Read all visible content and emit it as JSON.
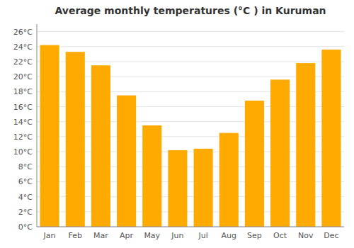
{
  "chart_data": {
    "type": "bar",
    "title": "Average monthly temperatures (°C ) in Kuruman",
    "categories": [
      "Jan",
      "Feb",
      "Mar",
      "Apr",
      "May",
      "Jun",
      "Jul",
      "Aug",
      "Sep",
      "Oct",
      "Nov",
      "Dec"
    ],
    "values": [
      24.2,
      23.3,
      21.5,
      17.5,
      13.5,
      10.2,
      10.4,
      12.5,
      16.8,
      19.6,
      21.8,
      23.6
    ],
    "color": "#FFAA00",
    "ylim": [
      0,
      27
    ],
    "yticks": [
      {
        "value": 0,
        "label": "0°C"
      },
      {
        "value": 2,
        "label": "2°C"
      },
      {
        "value": 4,
        "label": "4°C"
      },
      {
        "value": 6,
        "label": "6°C"
      },
      {
        "value": 8,
        "label": "8°C"
      },
      {
        "value": 10,
        "label": "10°C"
      },
      {
        "value": 12,
        "label": "12°C"
      },
      {
        "value": 14,
        "label": "14°C"
      },
      {
        "value": 16,
        "label": "16°C"
      },
      {
        "value": 18,
        "label": "18°C"
      },
      {
        "value": 20,
        "label": "20°C"
      },
      {
        "value": 22,
        "label": "22°C"
      },
      {
        "value": 24,
        "label": "24°C"
      },
      {
        "value": 26,
        "label": "26°C"
      }
    ],
    "grid": true
  }
}
